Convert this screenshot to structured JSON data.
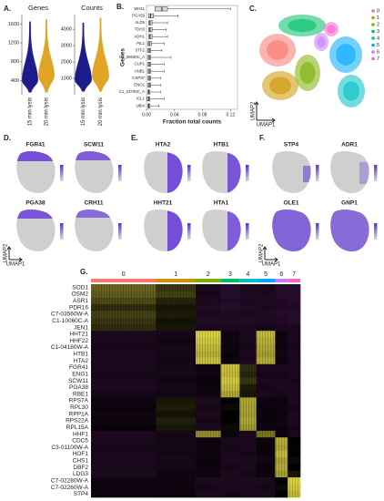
{
  "chart_data": [
    {
      "type": "violin",
      "panel": "A.",
      "title": "Genes",
      "categories": [
        "15 min lysis",
        "20 min lysis"
      ],
      "colors": [
        "#1c1c8a",
        "#e0a526"
      ],
      "min": [
        150,
        150
      ],
      "peak": [
        400,
        500
      ],
      "max": [
        1650,
        1700
      ],
      "ylim": [
        100,
        1800
      ],
      "yticks": [
        400,
        800,
        1200,
        1600
      ]
    },
    {
      "type": "violin",
      "title": "Counts",
      "categories": [
        "15 min lysis",
        "20 min lysis"
      ],
      "colors": [
        "#1c1c8a",
        "#e0a526"
      ],
      "min": [
        200,
        200
      ],
      "peak": [
        900,
        1100
      ],
      "max": [
        4400,
        4700
      ],
      "ylim": [
        0,
        4900
      ],
      "yticks": [
        1000,
        2000,
        3000,
        4000
      ]
    },
    {
      "type": "boxplot",
      "panel": "B.",
      "x_label": "Fraction total counts",
      "y_label": "Genes",
      "categories": [
        "WH11",
        "PGA59",
        "ALD5",
        "TDH3",
        "ADH1",
        "PIL1",
        "STF2",
        "C2_05630C_A",
        "CUP1",
        "ANB1",
        "CSP37",
        "ENO1",
        "C1_02700C_A",
        "ICL1",
        "UBI4"
      ],
      "q1": [
        0.012,
        0.003,
        0.003,
        0.003,
        0.003,
        0.002,
        0.002,
        0.002,
        0.002,
        0.002,
        0.002,
        0.002,
        0.002,
        0.001,
        0.002
      ],
      "median": [
        0.022,
        0.006,
        0.005,
        0.005,
        0.005,
        0.004,
        0.004,
        0.004,
        0.004,
        0.004,
        0.004,
        0.004,
        0.003,
        0.003,
        0.003
      ],
      "q3": [
        0.03,
        0.01,
        0.008,
        0.008,
        0.008,
        0.007,
        0.006,
        0.006,
        0.006,
        0.006,
        0.006,
        0.006,
        0.005,
        0.005,
        0.005
      ],
      "max": [
        0.12,
        0.045,
        0.03,
        0.028,
        0.03,
        0.025,
        0.022,
        0.035,
        0.025,
        0.025,
        0.02,
        0.02,
        0.02,
        0.025,
        0.018
      ],
      "xlim": [
        0,
        0.13
      ],
      "xticks": [
        {
          "value": 0,
          "label": "0.00"
        },
        {
          "value": 0.04,
          "label": "0.04"
        },
        {
          "value": 0.08,
          "label": "0.08"
        },
        {
          "value": 0.12,
          "label": "0.12"
        }
      ]
    },
    {
      "type": "umap",
      "panel": "C.",
      "x_label": "UMAP1",
      "y_label": "UMAP2",
      "series": [
        {
          "name": "0",
          "color": "#f8766d"
        },
        {
          "name": "1",
          "color": "#cd9600"
        },
        {
          "name": "2",
          "color": "#7cae00"
        },
        {
          "name": "3",
          "color": "#00be67"
        },
        {
          "name": "4",
          "color": "#00bfc4"
        },
        {
          "name": "5",
          "color": "#00a9ff"
        },
        {
          "name": "6",
          "color": "#c77cff"
        },
        {
          "name": "7",
          "color": "#ff61cc"
        }
      ]
    },
    {
      "type": "feature",
      "panel": "D.",
      "genes": [
        "FGR41",
        "SCW11",
        "PGA38",
        "CRH11"
      ],
      "x_label": "UMAP1",
      "y_label": "UMAP2"
    },
    {
      "type": "feature",
      "panel": "E.",
      "genes": [
        "HTA2",
        "HTB1",
        "HHT21",
        "HTA1"
      ]
    },
    {
      "type": "feature",
      "panel": "F.",
      "genes": [
        "STP4",
        "ADR1",
        "OLE1",
        "GNP1"
      ],
      "x_label": "UMAP1",
      "y_label": "UMAP2"
    },
    {
      "type": "heatmap",
      "panel": "G.",
      "columns": [
        "0",
        "1",
        "2",
        "3",
        "4",
        "5",
        "6",
        "7"
      ],
      "column_colors": [
        "#f8766d",
        "#cd9600",
        "#7cae00",
        "#00be67",
        "#00bfc4",
        "#00a9ff",
        "#c77cff",
        "#ff61cc"
      ],
      "column_share": [
        31,
        19,
        12,
        9,
        8,
        9,
        6,
        6
      ],
      "color_scale": [
        "#8a2b9a",
        "#000000",
        "#f2e84a"
      ],
      "rows": [
        "SOD1",
        "OSM2",
        "ASR1",
        "PDR16",
        "C7-03560W-A",
        "C1-10060C-A",
        "JEN1",
        "HHT21",
        "HHF22",
        "C1-04180W-A",
        "HTB1",
        "HTA2",
        "FGR41",
        "ENG1",
        "SCW11",
        "PGA38",
        "RBE1",
        "RPS7A",
        "RPL30",
        "RPP1A",
        "RPS22A",
        "RPL15A",
        "HHF1",
        "CDC5",
        "C3-01100W-A",
        "HOF1",
        "CHS1",
        "DBF2",
        "LDG3",
        "C7-02280W-A",
        "C7-02260W-A",
        "STP4"
      ],
      "values": [
        [
          0.72,
          0.62,
          0.4,
          0.36,
          0.4,
          0.4,
          0.36,
          0.36
        ],
        [
          0.7,
          0.64,
          0.42,
          0.36,
          0.38,
          0.4,
          0.36,
          0.36
        ],
        [
          0.66,
          0.58,
          0.4,
          0.38,
          0.4,
          0.38,
          0.38,
          0.36
        ],
        [
          0.6,
          0.55,
          0.38,
          0.36,
          0.38,
          0.4,
          0.38,
          0.38
        ],
        [
          0.64,
          0.56,
          0.4,
          0.38,
          0.4,
          0.38,
          0.36,
          0.36
        ],
        [
          0.62,
          0.54,
          0.38,
          0.38,
          0.38,
          0.38,
          0.38,
          0.36
        ],
        [
          0.6,
          0.55,
          0.4,
          0.4,
          0.4,
          0.42,
          0.4,
          0.4
        ],
        [
          0.4,
          0.42,
          0.95,
          0.45,
          0.4,
          0.9,
          0.45,
          0.4
        ],
        [
          0.4,
          0.44,
          0.93,
          0.44,
          0.4,
          0.88,
          0.44,
          0.4
        ],
        [
          0.42,
          0.42,
          0.9,
          0.45,
          0.42,
          0.86,
          0.45,
          0.42
        ],
        [
          0.4,
          0.42,
          0.88,
          0.46,
          0.4,
          0.84,
          0.44,
          0.4
        ],
        [
          0.4,
          0.43,
          0.92,
          0.44,
          0.4,
          0.87,
          0.45,
          0.4
        ],
        [
          0.4,
          0.42,
          0.45,
          0.92,
          0.6,
          0.4,
          0.4,
          0.4
        ],
        [
          0.42,
          0.42,
          0.44,
          0.9,
          0.58,
          0.42,
          0.42,
          0.4
        ],
        [
          0.4,
          0.44,
          0.46,
          0.93,
          0.62,
          0.4,
          0.4,
          0.42
        ],
        [
          0.4,
          0.42,
          0.45,
          0.9,
          0.56,
          0.42,
          0.4,
          0.4
        ],
        [
          0.42,
          0.43,
          0.44,
          0.86,
          0.55,
          0.4,
          0.42,
          0.4
        ],
        [
          0.45,
          0.55,
          0.4,
          0.5,
          0.86,
          0.45,
          0.45,
          0.4
        ],
        [
          0.46,
          0.56,
          0.42,
          0.52,
          0.85,
          0.46,
          0.44,
          0.42
        ],
        [
          0.44,
          0.54,
          0.4,
          0.5,
          0.84,
          0.45,
          0.45,
          0.4
        ],
        [
          0.45,
          0.57,
          0.42,
          0.5,
          0.86,
          0.46,
          0.44,
          0.4
        ],
        [
          0.46,
          0.55,
          0.4,
          0.52,
          0.83,
          0.45,
          0.45,
          0.42
        ],
        [
          0.4,
          0.42,
          0.8,
          0.45,
          0.4,
          0.75,
          0.45,
          0.4
        ],
        [
          0.4,
          0.42,
          0.45,
          0.4,
          0.4,
          0.45,
          0.88,
          0.5
        ],
        [
          0.42,
          0.42,
          0.44,
          0.42,
          0.4,
          0.46,
          0.86,
          0.48
        ],
        [
          0.4,
          0.43,
          0.45,
          0.4,
          0.42,
          0.45,
          0.9,
          0.5
        ],
        [
          0.4,
          0.42,
          0.46,
          0.4,
          0.4,
          0.44,
          0.85,
          0.52
        ],
        [
          0.41,
          0.42,
          0.45,
          0.42,
          0.4,
          0.46,
          0.87,
          0.5
        ],
        [
          0.4,
          0.44,
          0.44,
          0.4,
          0.42,
          0.45,
          0.84,
          0.55
        ],
        [
          0.45,
          0.45,
          0.4,
          0.4,
          0.4,
          0.4,
          0.5,
          0.95
        ],
        [
          0.45,
          0.44,
          0.42,
          0.4,
          0.4,
          0.42,
          0.52,
          0.93
        ],
        [
          0.44,
          0.45,
          0.4,
          0.42,
          0.4,
          0.4,
          0.5,
          0.9
        ]
      ]
    }
  ]
}
